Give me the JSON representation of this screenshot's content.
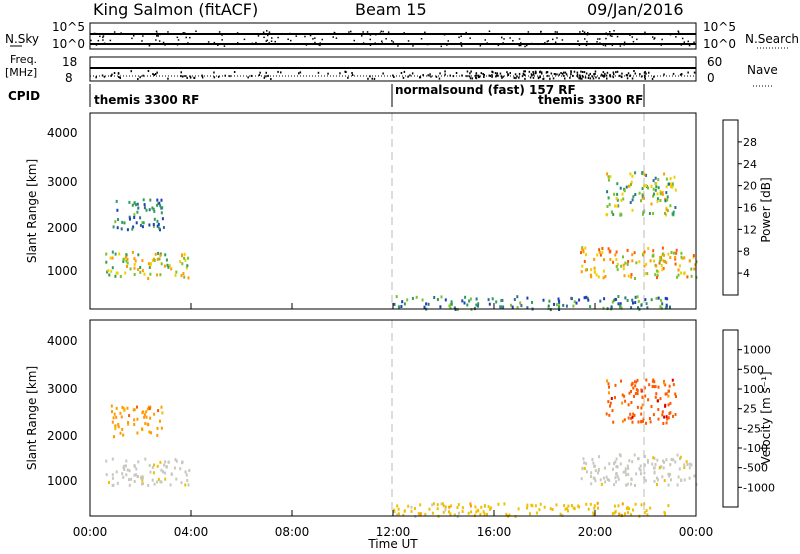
{
  "header": {
    "station": "King Salmon (fitACF)",
    "beam": "Beam 15",
    "date": "09/Jan/2016"
  },
  "summary_panels": {
    "nsky_label": "N.Sky",
    "nsky_ticks": [
      "10^5",
      "10^0"
    ],
    "nsearch_label": "N.Search",
    "nsearch_ticks": [
      "10^5",
      "10^0"
    ],
    "freq_label_line1": "Freq.",
    "freq_label_line2": "[MHz]",
    "freq_ticks": [
      "18",
      "8"
    ],
    "nave_label": "Nave",
    "nave_ticks": [
      "60",
      "0"
    ],
    "cpid_label": "CPID",
    "cpid_segments": [
      {
        "name": "themis 3300 RF",
        "start_h": 0,
        "end_h": 12
      },
      {
        "name": "normalsound (fast) 157 RF",
        "start_h": 12,
        "end_h": 22
      },
      {
        "name": "themis 3300 RF",
        "start_h": 22,
        "end_h": 24
      }
    ]
  },
  "x_axis": {
    "label": "Time UT",
    "ticks": [
      "00:00",
      "04:00",
      "08:00",
      "12:00",
      "16:00",
      "20:00",
      "00:00"
    ]
  },
  "power_panel": {
    "ylabel": "Slant Range [km]",
    "yticks": [
      "4000",
      "3000",
      "2000",
      "1000"
    ],
    "colorbar_label": "Power [dB]",
    "colorbar_ticks": [
      "28",
      "24",
      "20",
      "16",
      "12",
      "8",
      "4"
    ],
    "colorbar_colors": [
      "#0000ff",
      "#1f3fb8",
      "#2e6f8e",
      "#2e9e5a",
      "#79c22e",
      "#f0d000",
      "#ff9a00",
      "#ff5a00",
      "#e00000"
    ]
  },
  "velocity_panel": {
    "ylabel": "Slant Range [km]",
    "yticks": [
      "4000",
      "3000",
      "2000",
      "1000"
    ],
    "colorbar_label": "Velocity [m s⁻¹]",
    "colorbar_ticks": [
      "1000",
      "500",
      "100",
      "25",
      "-25",
      "-100",
      "-500",
      "-1000"
    ],
    "colorbar_colors": [
      "#e00000",
      "#ff5a00",
      "#ff9a00",
      "#f0c000",
      "#c8c8c0",
      "#c8c8c0",
      "#6ad02e",
      "#2e8e5a",
      "#1f4fb8",
      "#0000d0"
    ]
  },
  "chart_data": {
    "type": "heatmap",
    "x_range_hours": [
      0,
      24
    ],
    "y_range_km": [
      180,
      4600
    ],
    "scatter_regions": [
      {
        "start_h": 0.6,
        "end_h": 4.0,
        "range_km": [
          900,
          1500
        ],
        "power_db": 18,
        "velocity_class": "-25..25"
      },
      {
        "start_h": 0.8,
        "end_h": 2.9,
        "range_km": [
          2000,
          2700
        ],
        "power_db": 9,
        "velocity_class": "-500..-100"
      },
      {
        "start_h": 19.4,
        "end_h": 24.0,
        "range_km": [
          900,
          1600
        ],
        "power_db": 22,
        "velocity_class": "-25..25"
      },
      {
        "start_h": 20.4,
        "end_h": 23.2,
        "range_km": [
          2300,
          3300
        ],
        "power_db": 16,
        "velocity_class": "-1000..-500"
      },
      {
        "start_h": 12.0,
        "end_h": 23.0,
        "range_km": [
          200,
          500
        ],
        "power_db": 10,
        "velocity_class": "-100..-25"
      }
    ],
    "dashed_markers_h": [
      12,
      22
    ]
  }
}
